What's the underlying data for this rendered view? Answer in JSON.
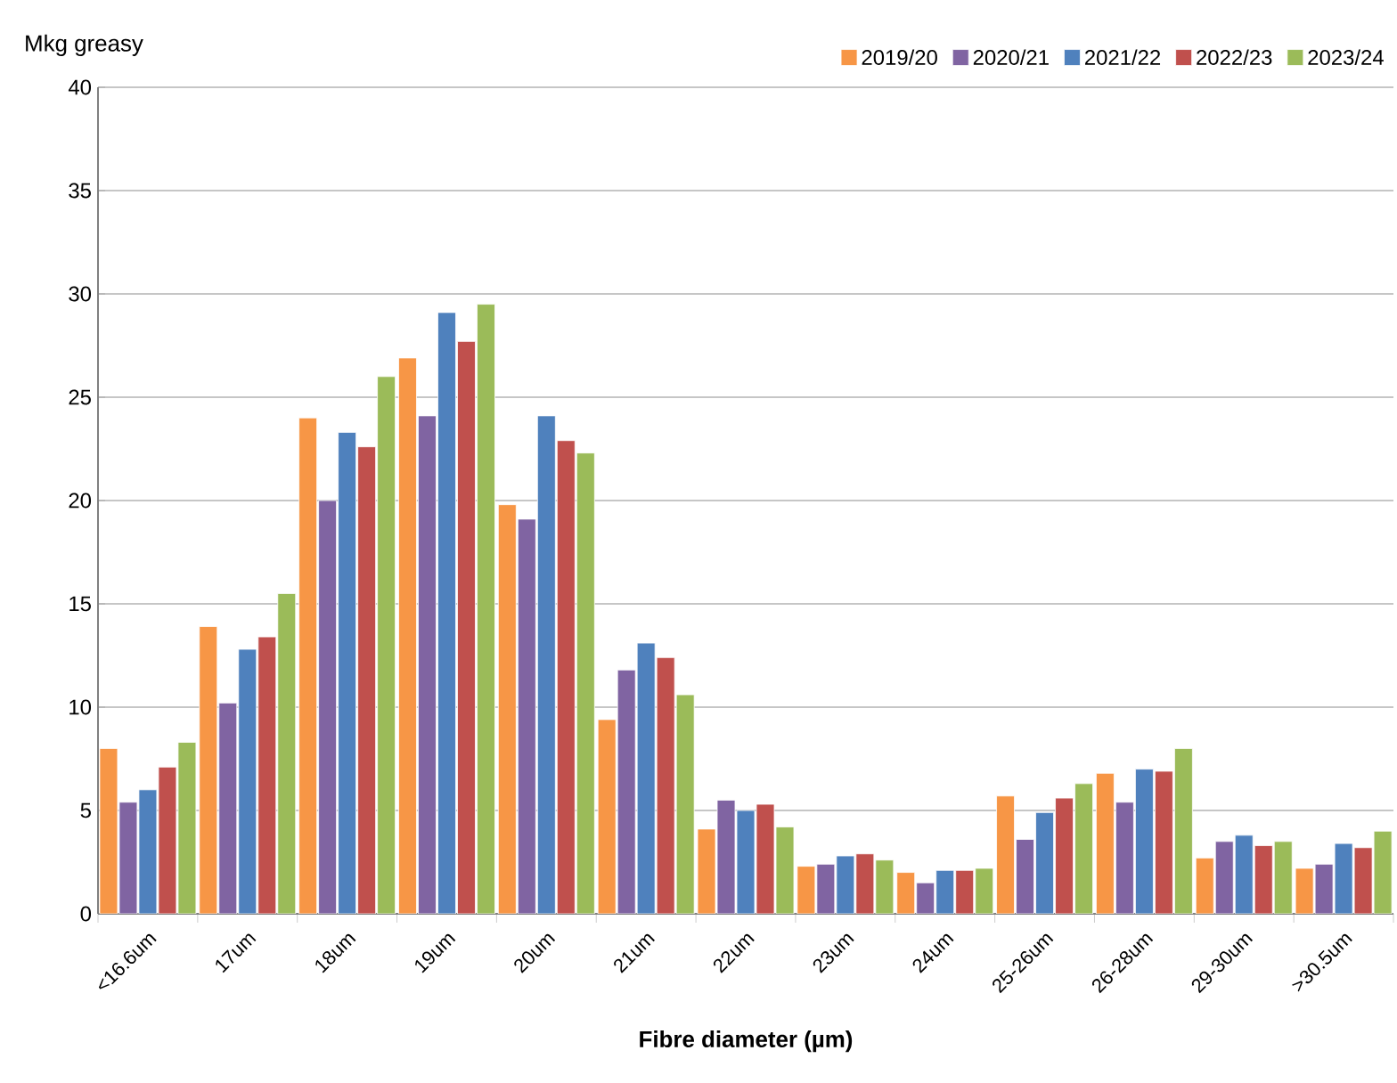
{
  "chart_data": {
    "type": "bar",
    "ylabel": "Mkg greasy",
    "xlabel": "Fibre diameter (µm)",
    "categories": [
      "<16.6um",
      "17um",
      "18um",
      "19um",
      "20um",
      "21um",
      "22um",
      "23um",
      "24um",
      "25-26um",
      "26-28um",
      "29-30um",
      ">30.5um"
    ],
    "series": [
      {
        "name": "2019/20",
        "color": "#f79646",
        "values": [
          8.0,
          13.9,
          24.0,
          26.9,
          19.8,
          9.4,
          4.1,
          2.3,
          2.0,
          5.7,
          6.8,
          2.7,
          2.2
        ]
      },
      {
        "name": "2020/21",
        "color": "#8064a2",
        "values": [
          5.4,
          10.2,
          20.0,
          24.1,
          19.1,
          11.8,
          5.5,
          2.4,
          1.5,
          3.6,
          5.4,
          3.5,
          2.4
        ]
      },
      {
        "name": "2021/22",
        "color": "#4f81bd",
        "values": [
          6.0,
          12.8,
          23.3,
          29.1,
          24.1,
          13.1,
          5.0,
          2.8,
          2.1,
          4.9,
          7.0,
          3.8,
          3.4
        ]
      },
      {
        "name": "2022/23",
        "color": "#c0504d",
        "values": [
          7.1,
          13.4,
          22.6,
          27.7,
          22.9,
          12.4,
          5.3,
          2.9,
          2.1,
          5.6,
          6.9,
          3.3,
          3.2
        ]
      },
      {
        "name": "2023/24",
        "color": "#9bbb59",
        "values": [
          8.3,
          15.5,
          26.0,
          29.5,
          22.3,
          10.6,
          4.2,
          2.6,
          2.2,
          6.3,
          8.0,
          3.5,
          4.0
        ]
      }
    ],
    "ylim": [
      0,
      40
    ],
    "yticks": [
      0,
      5,
      10,
      15,
      20,
      25,
      30,
      35,
      40
    ],
    "grid": "y",
    "legend": "top right"
  }
}
